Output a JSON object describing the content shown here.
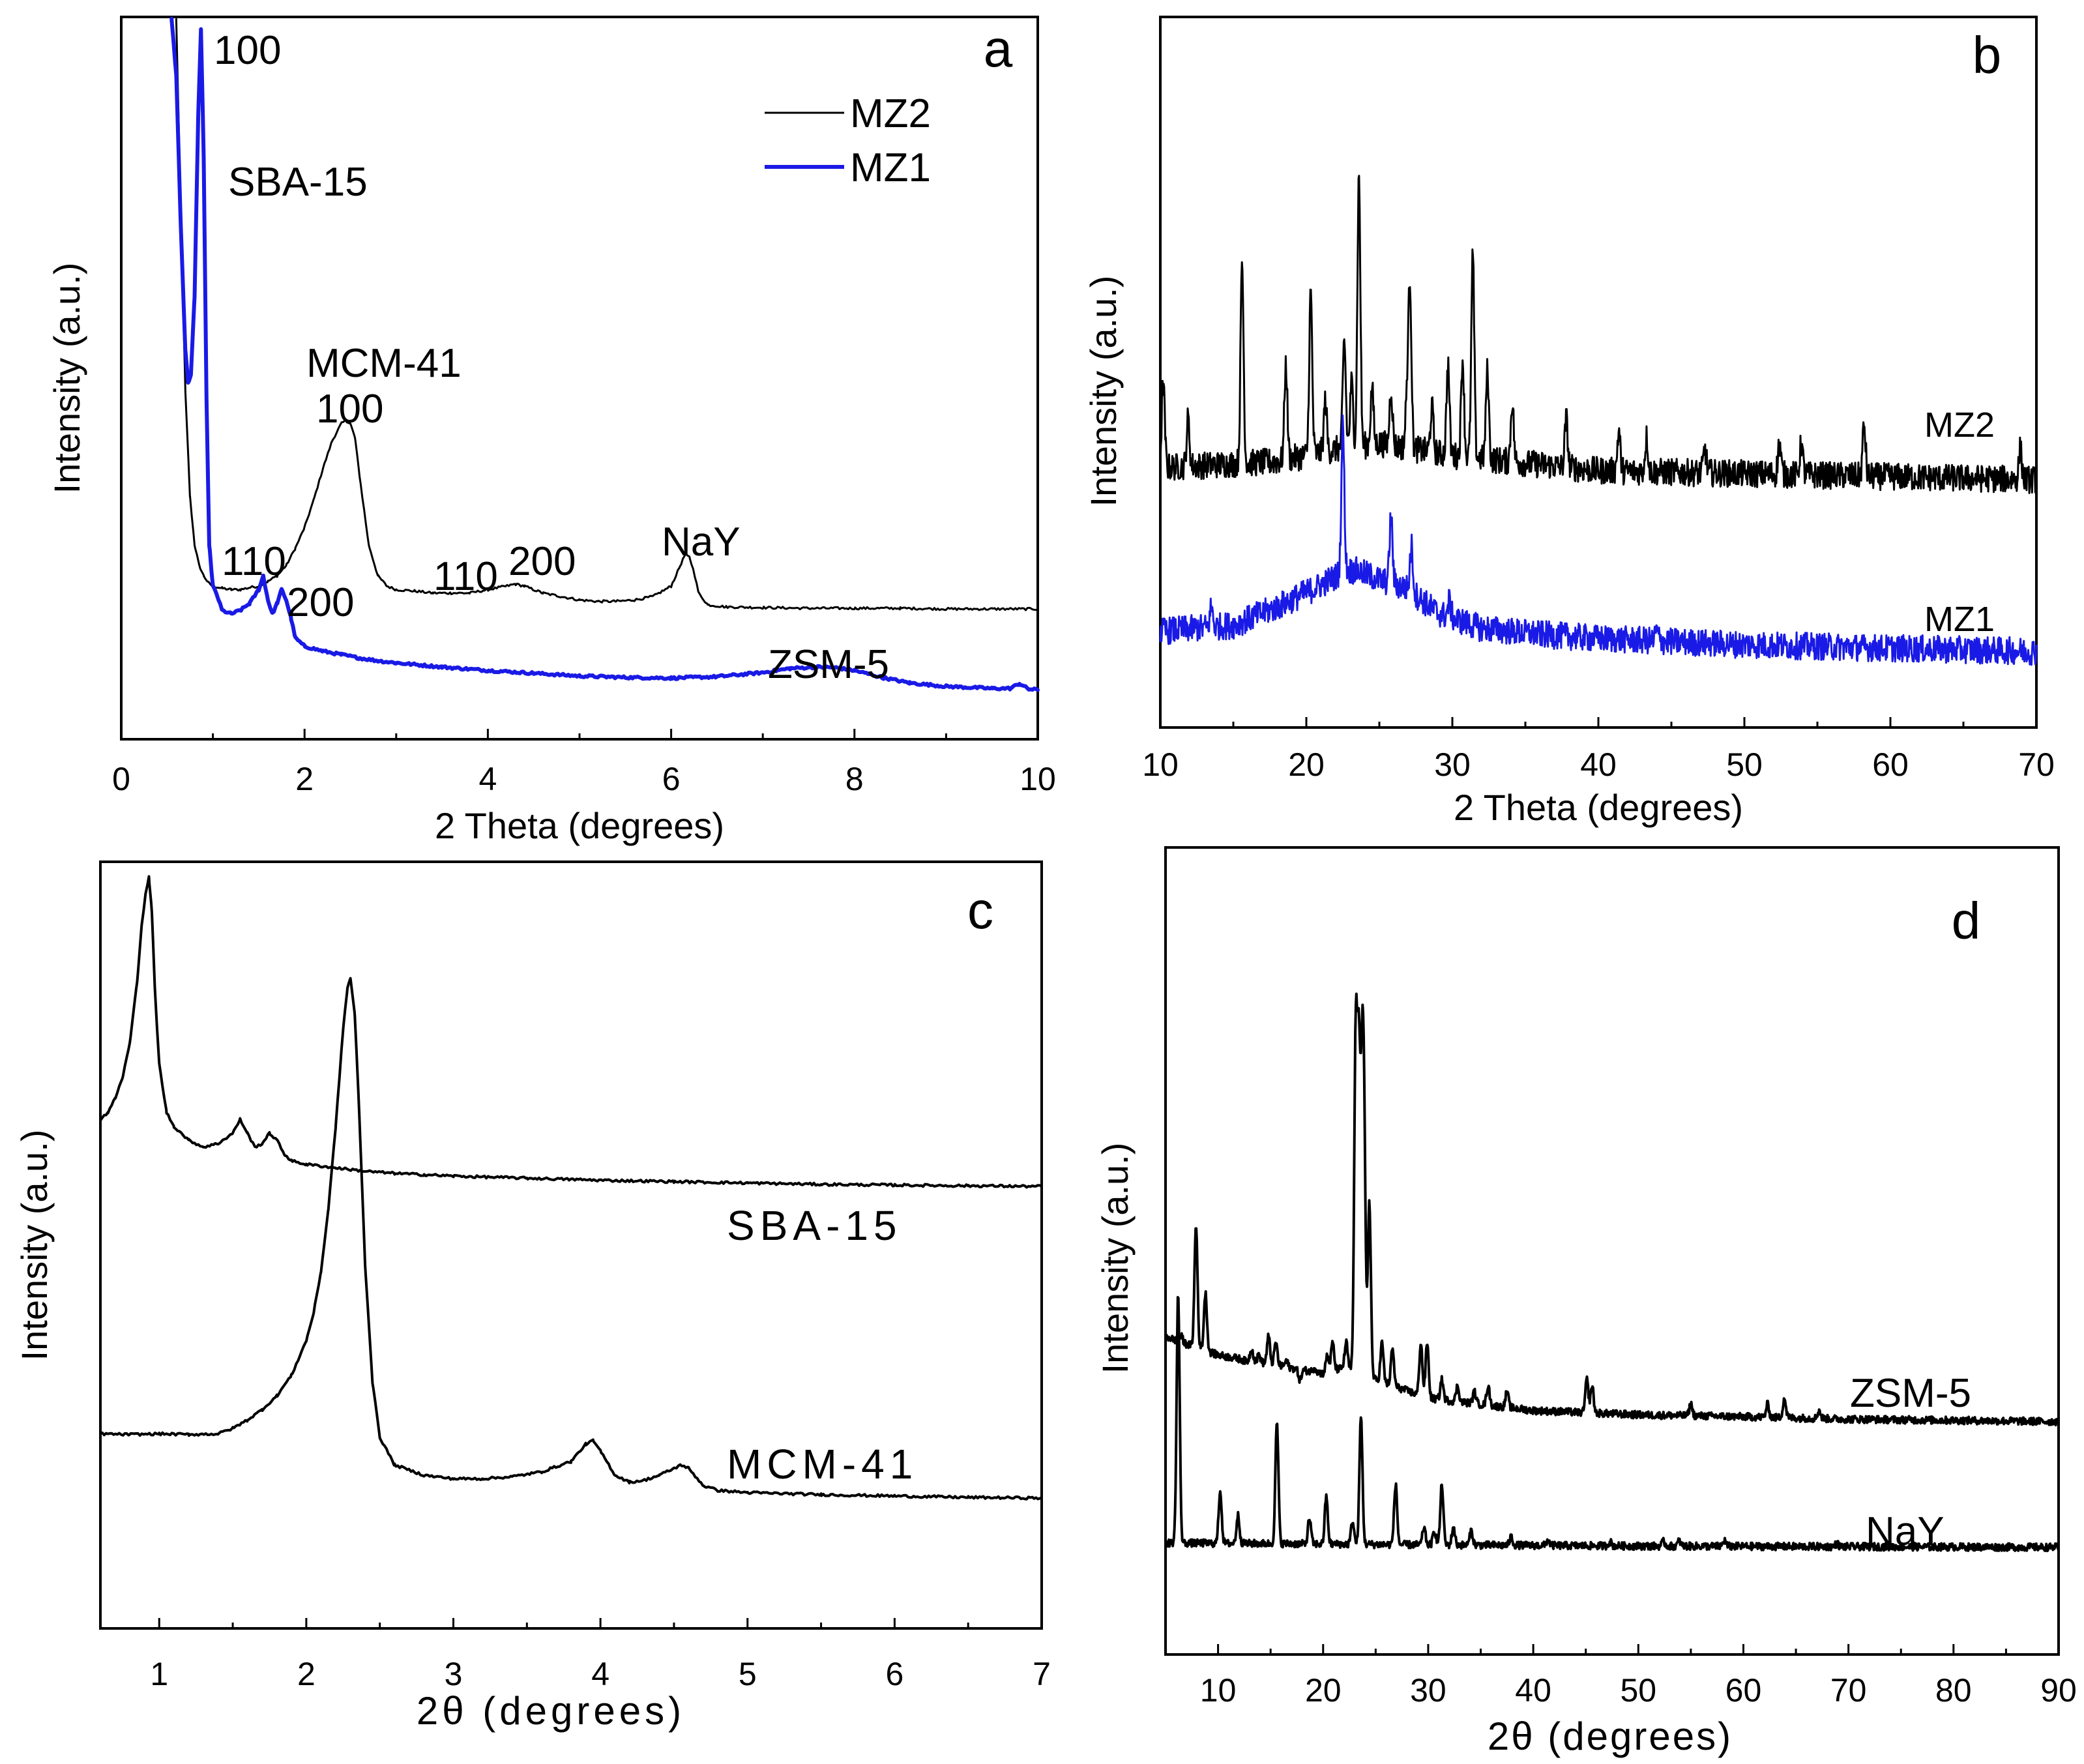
{
  "chart_data": [
    {
      "panel": "a",
      "type": "line",
      "xlabel": "2 Theta (degrees)",
      "ylabel": "Intensity (a.u.)",
      "xlim": [
        0,
        10
      ],
      "ylim": [
        0,
        100
      ],
      "xticks": [
        0,
        2,
        4,
        6,
        8,
        10
      ],
      "legend": {
        "placement": "top-right",
        "entries": [
          "MZ2",
          "MZ1"
        ]
      },
      "series": [
        {
          "name": "MZ2",
          "color": "#000000",
          "x": [
            0.6,
            0.65,
            0.7,
            0.75,
            0.8,
            0.85,
            0.9,
            0.95,
            1.0,
            1.1,
            1.2,
            1.3,
            1.4,
            1.5,
            1.6,
            1.7,
            1.8,
            1.9,
            2.0,
            2.1,
            2.2,
            2.3,
            2.4,
            2.45,
            2.5,
            2.55,
            2.6,
            2.7,
            2.8,
            2.9,
            3.0,
            3.2,
            3.4,
            3.6,
            3.8,
            4.0,
            4.2,
            4.3,
            4.4,
            4.6,
            4.8,
            5.0,
            5.2,
            5.4,
            5.6,
            5.8,
            6.0,
            6.1,
            6.15,
            6.2,
            6.25,
            6.3,
            6.4,
            6.6,
            7.0,
            7.5,
            8.0,
            8.5,
            9.0,
            9.5,
            10.0
          ],
          "y": [
            100,
            72,
            46,
            31,
            24,
            21,
            19.5,
            18.5,
            18,
            17.7,
            17.5,
            17.5,
            17.8,
            18,
            18.7,
            19.5,
            21,
            23.5,
            26.5,
            30.5,
            35,
            39,
            41.5,
            42,
            41.5,
            39.5,
            34,
            24,
            19.5,
            18,
            17.5,
            17.3,
            17,
            17,
            17,
            17.5,
            18,
            18.3,
            18,
            17,
            16.5,
            16,
            15.8,
            15.8,
            16,
            16.5,
            18,
            21,
            22.5,
            22.2,
            20,
            17,
            15.3,
            15,
            14.9,
            14.8,
            14.8,
            14.8,
            14.7,
            14.7,
            14.7
          ]
        },
        {
          "name": "MZ1",
          "color": "#1a1ae6",
          "x": [
            0.55,
            0.6,
            0.65,
            0.7,
            0.73,
            0.76,
            0.8,
            0.84,
            0.87,
            0.9,
            0.93,
            0.96,
            1.0,
            1.05,
            1.1,
            1.2,
            1.3,
            1.4,
            1.5,
            1.55,
            1.6,
            1.65,
            1.7,
            1.75,
            1.8,
            1.85,
            1.9,
            2.0,
            2.2,
            2.4,
            2.6,
            2.8,
            3.0,
            3.5,
            4.0,
            4.5,
            5.0,
            5.5,
            6.0,
            6.5,
            7.0,
            7.3,
            7.6,
            7.8,
            8.0,
            8.3,
            8.6,
            9.0,
            9.5,
            9.7,
            9.8,
            9.9,
            10.0
          ],
          "y": [
            100,
            92,
            70,
            52,
            47.5,
            48.5,
            60,
            86,
            98.5,
            80,
            45,
            24,
            18,
            16.5,
            14.5,
            14,
            14.5,
            15.5,
            17.5,
            19.5,
            16,
            14,
            15.5,
            17.5,
            16,
            13.5,
            10.5,
            9.3,
            8.6,
            8.1,
            7.6,
            7.2,
            6.9,
            6.3,
            5.8,
            5.4,
            5,
            4.8,
            4.7,
            4.9,
            5.5,
            6.1,
            6.3,
            6.2,
            5.8,
            4.8,
            4,
            3.5,
            3.2,
            3.2,
            3.9,
            3.1,
            3
          ]
        }
      ],
      "annotations": [
        "100",
        "SBA-15",
        "MCM-41",
        "100",
        "110",
        "200",
        "110",
        "200",
        "NaY",
        "ZSM-5"
      ],
      "panel_label": "a"
    },
    {
      "panel": "b",
      "type": "line",
      "xlabel": "2 Theta (degrees)",
      "ylabel": "Intensity (a.u.)",
      "xlim": [
        10,
        70
      ],
      "ylim": [
        0,
        100
      ],
      "xticks": [
        10,
        20,
        30,
        40,
        50,
        60,
        70
      ],
      "series": [
        {
          "name": "MZ2",
          "color": "#000000",
          "baseline": [
            [
              10,
              39
            ],
            [
              18,
              40
            ],
            [
              22,
              42
            ],
            [
              25,
              43
            ],
            [
              30,
              41
            ],
            [
              40,
              38.5
            ],
            [
              50,
              38
            ],
            [
              60,
              37.5
            ],
            [
              70,
              37
            ]
          ],
          "peaks": [
            [
              10.2,
              53
            ],
            [
              11.9,
              47
            ],
            [
              15.6,
              73
            ],
            [
              18.6,
              56
            ],
            [
              20.3,
              68
            ],
            [
              21.3,
              50
            ],
            [
              22.6,
              60
            ],
            [
              23.1,
              53
            ],
            [
              23.6,
              87
            ],
            [
              24.5,
              52
            ],
            [
              25.8,
              52
            ],
            [
              26.9,
              51
            ],
            [
              27.1,
              69
            ],
            [
              28.6,
              49
            ],
            [
              29.7,
              56
            ],
            [
              30.7,
              57
            ],
            [
              31.4,
              74
            ],
            [
              32.4,
              55
            ],
            [
              34.1,
              50
            ],
            [
              37.8,
              47
            ],
            [
              41.4,
              45
            ],
            [
              43.3,
              44
            ],
            [
              47.3,
              42
            ],
            [
              52.4,
              43
            ],
            [
              53.9,
              43
            ],
            [
              58.2,
              46
            ],
            [
              68.9,
              42
            ]
          ]
        },
        {
          "name": "MZ1",
          "color": "#1a1ae6",
          "baseline": [
            [
              10,
              12
            ],
            [
              15,
              13
            ],
            [
              18,
              16
            ],
            [
              20.5,
              19
            ],
            [
              22,
              21
            ],
            [
              22.5,
              22
            ],
            [
              23.5,
              22
            ],
            [
              25,
              20.5
            ],
            [
              27,
              19
            ],
            [
              29,
              15
            ],
            [
              32,
              12.5
            ],
            [
              36,
              11.5
            ],
            [
              40,
              10.8
            ],
            [
              50,
              9.8
            ],
            [
              60,
              9.2
            ],
            [
              70,
              8.7
            ]
          ],
          "peaks": [
            [
              13.5,
              16
            ],
            [
              22.5,
              46
            ],
            [
              25.8,
              31
            ],
            [
              27.2,
              26
            ],
            [
              29.8,
              17
            ],
            [
              44,
              12
            ]
          ]
        }
      ],
      "labels": [
        "MZ2",
        "MZ1"
      ],
      "panel_label": "b"
    },
    {
      "panel": "c",
      "type": "line",
      "xlabel": "2θ (degrees)",
      "ylabel": "Intensity (a.u.)",
      "xlim": [
        0.6,
        7
      ],
      "ylim": [
        0,
        100
      ],
      "xticks": [
        1,
        2,
        3,
        4,
        5,
        6,
        7
      ],
      "series": [
        {
          "name": "SBA-15",
          "color": "#000000",
          "x": [
            0.6,
            0.65,
            0.7,
            0.75,
            0.8,
            0.85,
            0.88,
            0.91,
            0.93,
            0.95,
            0.97,
            1.0,
            1.05,
            1.1,
            1.2,
            1.3,
            1.4,
            1.5,
            1.55,
            1.6,
            1.65,
            1.7,
            1.75,
            1.8,
            1.85,
            1.9,
            2.0,
            2.2,
            2.4,
            2.6,
            2.8,
            3.0,
            3.5,
            4.0,
            4.5,
            5.0,
            5.5,
            6.0,
            6.5,
            7.0
          ],
          "y": [
            63,
            64,
            66,
            69,
            74,
            83,
            91,
            96,
            98,
            93,
            82,
            71,
            64,
            62,
            60,
            59,
            59.5,
            61,
            63,
            61,
            59,
            59.5,
            61,
            60,
            58,
            57,
            56.5,
            56,
            55.5,
            55.2,
            55,
            54.8,
            54.5,
            54.2,
            54,
            53.8,
            53.6,
            53.5,
            53.4,
            53.3
          ]
        },
        {
          "name": "MCM-41",
          "color": "#000000",
          "x": [
            0.6,
            0.8,
            1.0,
            1.2,
            1.4,
            1.5,
            1.6,
            1.7,
            1.8,
            1.9,
            2.0,
            2.05,
            2.1,
            2.15,
            2.2,
            2.25,
            2.28,
            2.3,
            2.33,
            2.36,
            2.4,
            2.45,
            2.5,
            2.6,
            2.8,
            3.0,
            3.2,
            3.4,
            3.6,
            3.8,
            3.9,
            3.95,
            4.0,
            4.1,
            4.2,
            4.3,
            4.4,
            4.5,
            4.55,
            4.6,
            4.7,
            4.8,
            5.0,
            5.5,
            6.0,
            6.5,
            7.0
          ],
          "y": [
            17.5,
            17.4,
            17.5,
            17.4,
            17.5,
            18.3,
            19.5,
            21,
            23,
            26,
            31,
            35,
            41,
            50,
            62,
            76,
            82,
            83.5,
            78,
            64,
            42,
            25,
            17,
            13,
            11.5,
            11,
            11,
            11.3,
            12,
            13.5,
            16,
            16.5,
            15,
            11.5,
            10.5,
            10.8,
            11.5,
            12.5,
            13,
            12.5,
            10,
            9.3,
            9,
            8.7,
            8.5,
            8.3,
            8.2
          ]
        }
      ],
      "labels": [
        "SBA-15",
        "MCM-41"
      ],
      "panel_label": "c"
    },
    {
      "panel": "d",
      "type": "line",
      "xlabel": "2θ (degrees)",
      "ylabel": "Intensity (a.u.)",
      "xlim": [
        5,
        90
      ],
      "ylim": [
        0,
        100
      ],
      "xticks": [
        10,
        20,
        30,
        40,
        50,
        60,
        70,
        80,
        90
      ],
      "series": [
        {
          "name": "ZSM-5",
          "color": "#000000",
          "baseline": [
            [
              5,
              37
            ],
            [
              10,
              34
            ],
            [
              20,
              31
            ],
            [
              22,
              32
            ],
            [
              25,
              30
            ],
            [
              30,
              27
            ],
            [
              40,
              25
            ],
            [
              50,
              24.3
            ],
            [
              60,
              24
            ],
            [
              70,
              23.6
            ],
            [
              90,
              23.2
            ]
          ],
          "peaks": [
            [
              6.5,
              37
            ],
            [
              7.9,
              55
            ],
            [
              8.8,
              44
            ],
            [
              12.6,
              33
            ],
            [
              13.2,
              35
            ],
            [
              13.9,
              34
            ],
            [
              14.8,
              37
            ],
            [
              15.5,
              36
            ],
            [
              16.5,
              33
            ],
            [
              17.8,
              30
            ],
            [
              19.2,
              32
            ],
            [
              20.4,
              34
            ],
            [
              20.9,
              36
            ],
            [
              22.2,
              36
            ],
            [
              23.1,
              85
            ],
            [
              23.4,
              79
            ],
            [
              23.7,
              70
            ],
            [
              23.9,
              66
            ],
            [
              24.4,
              59
            ],
            [
              25.6,
              36
            ],
            [
              26.6,
              35
            ],
            [
              29.3,
              36
            ],
            [
              29.9,
              36
            ],
            [
              31.3,
              30
            ],
            [
              32.8,
              29
            ],
            [
              34.4,
              28
            ],
            [
              35.7,
              29
            ],
            [
              37.5,
              28
            ],
            [
              45.1,
              30
            ],
            [
              45.6,
              29
            ],
            [
              55,
              26
            ],
            [
              62.3,
              26
            ],
            [
              63.9,
              27
            ],
            [
              67.2,
              25
            ]
          ]
        },
        {
          "name": "NaY",
          "color": "#000000",
          "baseline": [
            [
              5,
              3.5
            ],
            [
              15,
              3.4
            ],
            [
              30,
              3.2
            ],
            [
              50,
              3
            ],
            [
              90,
              2.8
            ]
          ],
          "peaks": [
            [
              6.2,
              44
            ],
            [
              10.2,
              12
            ],
            [
              11.9,
              8
            ],
            [
              15.6,
              23
            ],
            [
              18.7,
              7.5
            ],
            [
              20.3,
              11
            ],
            [
              22.8,
              7
            ],
            [
              23.6,
              24
            ],
            [
              26.9,
              13
            ],
            [
              29.6,
              6
            ],
            [
              30.6,
              5.5
            ],
            [
              31.3,
              13
            ],
            [
              32.4,
              6
            ],
            [
              34.1,
              5.5
            ],
            [
              37.9,
              4.5
            ],
            [
              41.4,
              4
            ],
            [
              47.3,
              3.7
            ],
            [
              52.4,
              3.7
            ],
            [
              53.9,
              3.8
            ],
            [
              58.2,
              3.9
            ],
            [
              68.9,
              3.4
            ]
          ]
        }
      ],
      "labels": [
        "ZSM-5",
        "NaY"
      ],
      "panel_label": "d"
    }
  ]
}
